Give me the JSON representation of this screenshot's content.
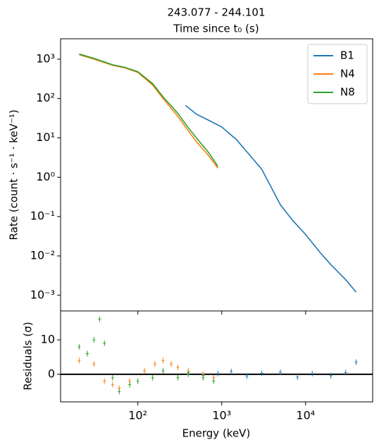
{
  "chart_data": [
    {
      "type": "line",
      "title": "243.077 - 244.101",
      "subtitle": "Time since t₀ (s)",
      "y_label": "Rate (count · s⁻¹ · keV⁻¹)",
      "log_x": true,
      "log_y": true,
      "legend": "upper right",
      "xlim": [
        12,
        63000
      ],
      "ylim": [
        0.0004,
        3300
      ],
      "yticks": [
        {
          "value": 0.001,
          "label": "10⁻³"
        },
        {
          "value": 0.01,
          "label": "10⁻²"
        },
        {
          "value": 0.1,
          "label": "10⁻¹"
        },
        {
          "value": 1,
          "label": "10⁰"
        },
        {
          "value": 10,
          "label": "10¹"
        },
        {
          "value": 100,
          "label": "10²"
        },
        {
          "value": 1000,
          "label": "10³"
        }
      ],
      "series": [
        {
          "name": "B1",
          "color": "#1f77b4",
          "x": [
            370,
            500,
            700,
            1000,
            1500,
            2000,
            3000,
            5000,
            7000,
            10000,
            15000,
            20000,
            30000,
            40000
          ],
          "values": [
            67,
            40,
            28,
            19,
            9,
            4.4,
            1.6,
            0.2,
            0.08,
            0.035,
            0.012,
            0.006,
            0.0025,
            0.0012
          ]
        },
        {
          "name": "N4",
          "color": "#ff7f0e",
          "x": [
            20,
            30,
            50,
            70,
            100,
            150,
            200,
            300,
            400,
            500,
            700,
            900
          ],
          "values": [
            1300,
            1000,
            700,
            600,
            460,
            220,
            100,
            35,
            15,
            8,
            3.5,
            1.7
          ]
        },
        {
          "name": "N8",
          "color": "#2ca02c",
          "x": [
            20,
            30,
            50,
            70,
            100,
            150,
            200,
            300,
            400,
            500,
            700,
            900
          ],
          "values": [
            1350,
            1050,
            720,
            620,
            480,
            240,
            110,
            42,
            18,
            10,
            4.2,
            1.9
          ]
        }
      ]
    },
    {
      "type": "scatter",
      "x_label": "Energy (keV)",
      "y_label": "Residuals (σ)",
      "log_x": true,
      "xlim": [
        12,
        63000
      ],
      "ylim": [
        -8,
        18.4
      ],
      "reference_line": 0,
      "xticks": [
        {
          "value": 100,
          "label": "10²"
        },
        {
          "value": 1000,
          "label": "10³"
        },
        {
          "value": 10000,
          "label": "10⁴"
        }
      ],
      "yticks": [
        0,
        10
      ],
      "series": [
        {
          "name": "B1",
          "color": "#1f77b4",
          "x": [
            400,
            600,
            900,
            1300,
            2000,
            3000,
            5000,
            8000,
            12000,
            20000,
            30000,
            40000
          ],
          "values": [
            0.5,
            -0.3,
            0.2,
            0.8,
            -0.5,
            0.3,
            0.6,
            -0.8,
            0.2,
            -0.4,
            0.5,
            3.5
          ]
        },
        {
          "name": "N4",
          "color": "#ff7f0e",
          "x": [
            20,
            25,
            30,
            40,
            50,
            60,
            80,
            120,
            160,
            200,
            250,
            300,
            400,
            600,
            800
          ],
          "values": [
            4,
            6,
            3,
            -2,
            -3,
            -4,
            -2,
            1,
            3,
            4,
            3,
            2,
            1,
            0,
            -1
          ]
        },
        {
          "name": "N8",
          "color": "#2ca02c",
          "x": [
            20,
            25,
            30,
            35,
            40,
            50,
            60,
            80,
            100,
            150,
            200,
            300,
            400,
            600,
            800
          ],
          "values": [
            8,
            6,
            10,
            16,
            9,
            -1,
            -5,
            -3,
            -2,
            -1,
            1,
            -1,
            0,
            -1,
            -2
          ]
        }
      ]
    }
  ]
}
